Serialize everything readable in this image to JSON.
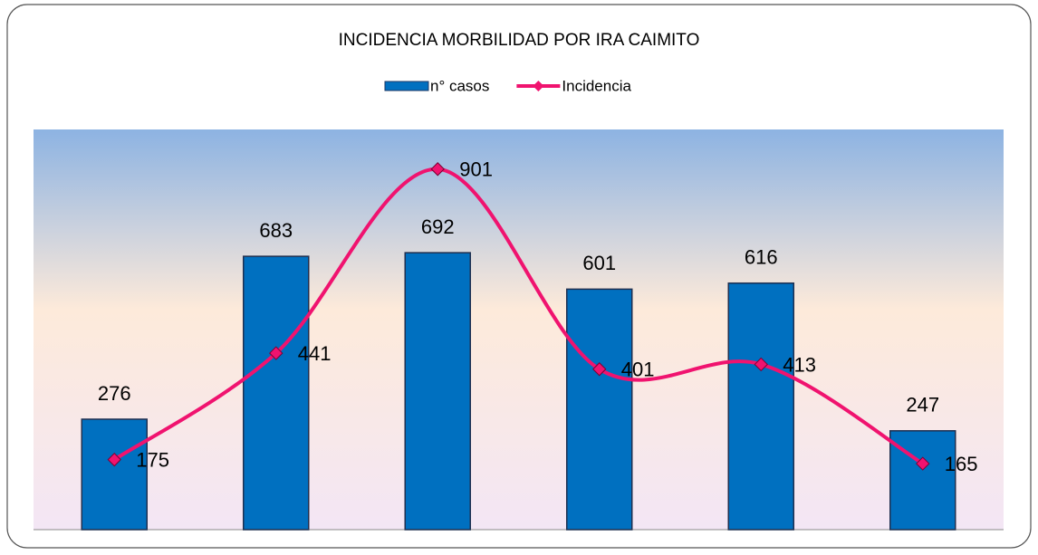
{
  "chart_data": {
    "type": "bar_line",
    "title": "INCIDENCIA MORBILIDAD POR IRA CAIMITO",
    "categories": [
      null,
      null,
      null,
      null,
      null,
      null
    ],
    "series": [
      {
        "name": "n° casos",
        "type": "bar",
        "color": "#0070c0",
        "values": [
          276,
          683,
          692,
          601,
          616,
          247
        ]
      },
      {
        "name": "Incidencia",
        "type": "line",
        "color": "#f0136f",
        "values": [
          175,
          441,
          901,
          401,
          413,
          165
        ]
      }
    ],
    "ylim": [
      0,
      1000
    ],
    "legend": "top"
  }
}
